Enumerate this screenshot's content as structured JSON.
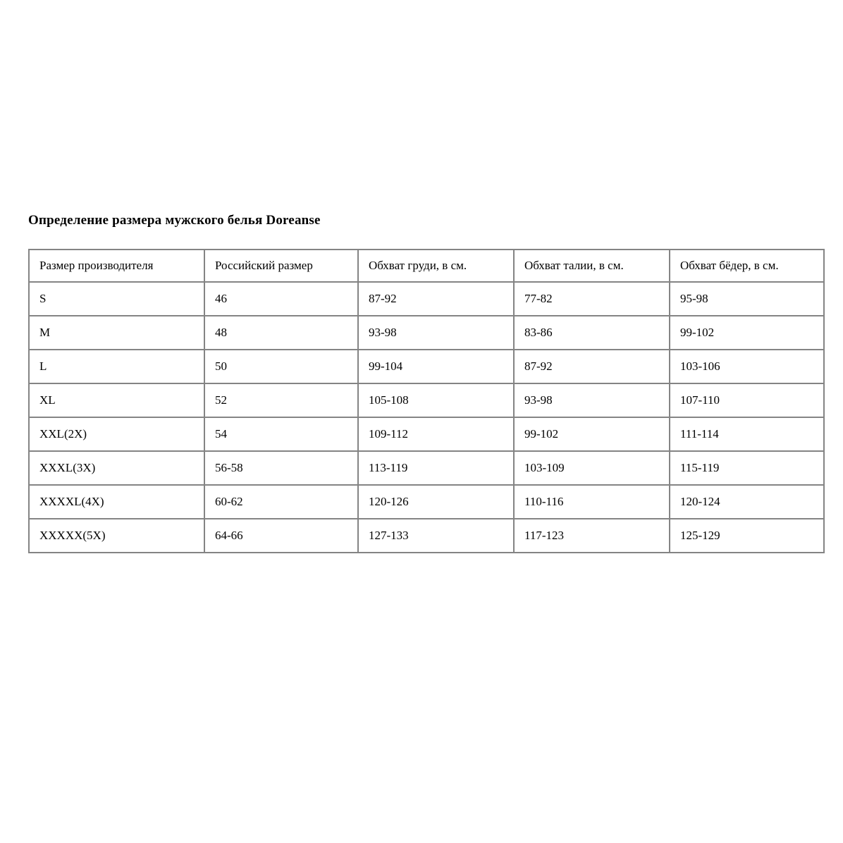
{
  "page": {
    "title": "Определение размера мужского белья Doreanse"
  },
  "table": {
    "columns": [
      "Размер производителя",
      "Российский размер",
      "Обхват груди, в см.",
      "Обхват талии, в см.",
      "Обхват бёдер, в см."
    ],
    "rows": [
      [
        "S",
        "46",
        "87-92",
        "77-82",
        "95-98"
      ],
      [
        "M",
        "48",
        "93-98",
        "83-86",
        "99-102"
      ],
      [
        "L",
        "50",
        "99-104",
        "87-92",
        "103-106"
      ],
      [
        "XL",
        "52",
        "105-108",
        "93-98",
        "107-110"
      ],
      [
        "XXL(2X)",
        "54",
        "109-112",
        "99-102",
        "111-114"
      ],
      [
        "XXXL(3X)",
        "56-58",
        "113-119",
        "103-109",
        "115-119"
      ],
      [
        "XXXXL(4X)",
        "60-62",
        "120-126",
        "110-116",
        "120-124"
      ],
      [
        "XXXXX(5X)",
        "64-66",
        "127-133",
        "117-123",
        "125-129"
      ]
    ]
  },
  "colors": {
    "background": "#ffffff",
    "text": "#000000",
    "table_border": "#848484"
  }
}
